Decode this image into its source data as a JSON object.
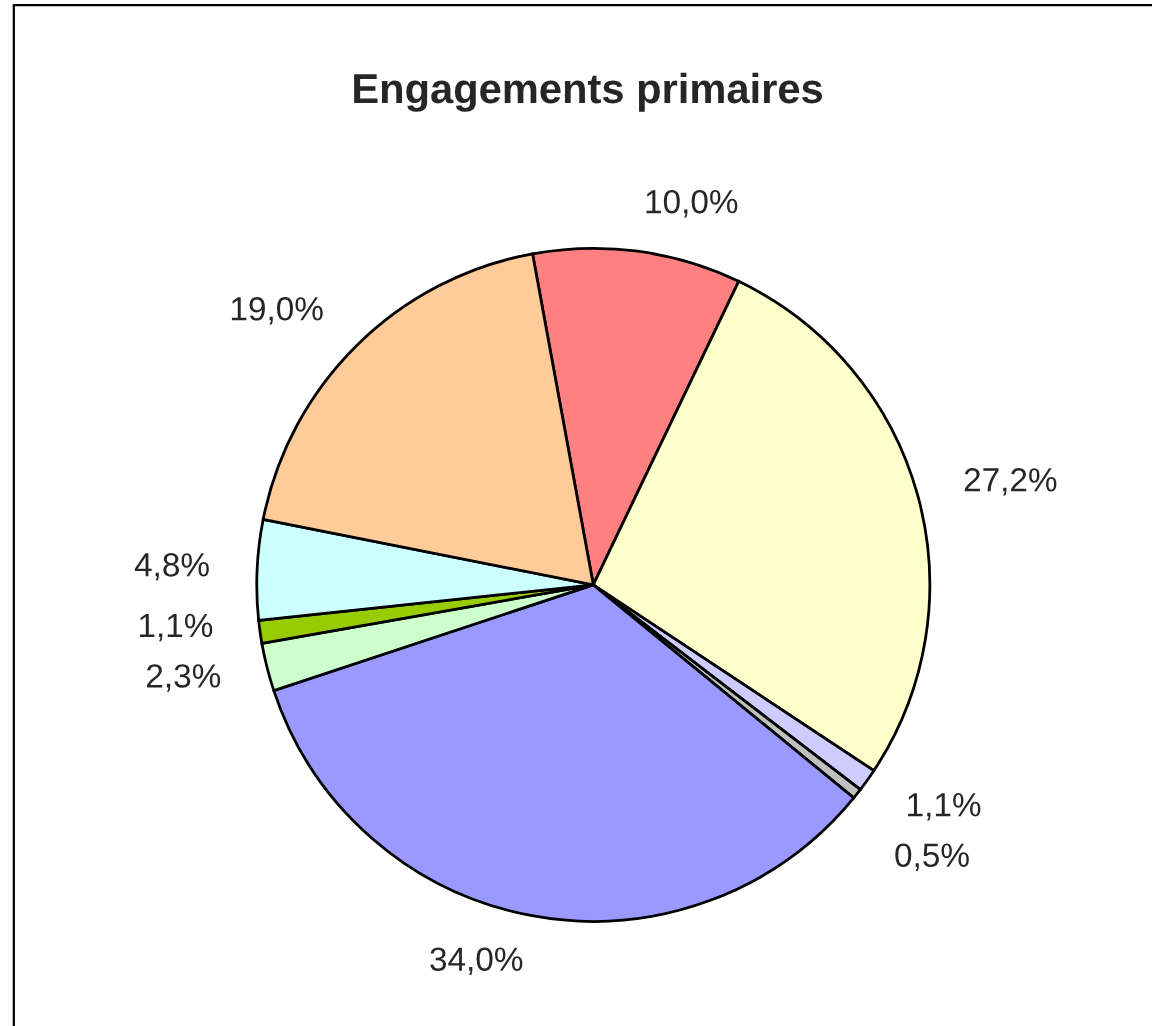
{
  "chart_data": {
    "type": "pie",
    "title": "Engagements primaires",
    "categories": [
      null,
      null,
      null,
      null,
      null,
      null,
      null,
      null,
      null
    ],
    "values": [
      10.0,
      27.2,
      1.1,
      0.5,
      34.0,
      2.3,
      1.1,
      4.8,
      19.0
    ],
    "colors": [
      "#ff8080",
      "#ffffcc",
      "#ccccff",
      "#c0c0c0",
      "#9999ff",
      "#ccffcc",
      "#99cc00",
      "#ccffff",
      "#ffcc99"
    ],
    "value_labels": [
      "10,0%",
      "27,2%",
      "1,1%",
      "0,5%",
      "34,0%",
      "2,3%",
      "1,1%",
      "4,8%",
      "19,0%"
    ]
  }
}
